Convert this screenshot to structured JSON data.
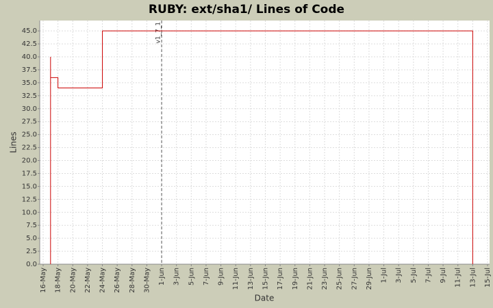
{
  "chart_data": {
    "type": "step-line",
    "title": "RUBY: ext/sha1/ Lines of Code",
    "x_label": "Date",
    "y_label": "Lines",
    "x": [
      "17-May",
      "17-May",
      "17-May",
      "18-May",
      "24-May",
      "13-Jul"
    ],
    "series": [
      {
        "name": "Lines",
        "color": "#cc0000",
        "values": [
          0,
          40,
          36,
          34,
          45,
          0
        ]
      }
    ],
    "xlim": [
      "16-May",
      "15-Jul"
    ],
    "xticks": [
      "16-May",
      "18-May",
      "20-May",
      "22-May",
      "24-May",
      "26-May",
      "28-May",
      "30-May",
      "1-Jun",
      "3-Jun",
      "5-Jun",
      "7-Jun",
      "9-Jun",
      "11-Jun",
      "13-Jun",
      "15-Jun",
      "17-Jun",
      "19-Jun",
      "21-Jun",
      "23-Jun",
      "25-Jun",
      "27-Jun",
      "29-Jun",
      "1-Jul",
      "3-Jul",
      "5-Jul",
      "7-Jul",
      "9-Jul",
      "11-Jul",
      "13-Jul",
      "15-Jul"
    ],
    "ylim": [
      0,
      47
    ],
    "yticks": [
      {
        "value": 0,
        "label": "0.0"
      },
      {
        "value": 2.5,
        "label": "2.5"
      },
      {
        "value": 5,
        "label": "5.0"
      },
      {
        "value": 7.5,
        "label": "7.5"
      },
      {
        "value": 10,
        "label": "10.0"
      },
      {
        "value": 12.5,
        "label": "12.5"
      },
      {
        "value": 15,
        "label": "15.0"
      },
      {
        "value": 17.5,
        "label": "17.5"
      },
      {
        "value": 20,
        "label": "20.0"
      },
      {
        "value": 22.5,
        "label": "22.5"
      },
      {
        "value": 25,
        "label": "25.0"
      },
      {
        "value": 27.5,
        "label": "27.5"
      },
      {
        "value": 30,
        "label": "30.0"
      },
      {
        "value": 32.5,
        "label": "32.5"
      },
      {
        "value": 35,
        "label": "35.0"
      },
      {
        "value": 37.5,
        "label": "37.5"
      },
      {
        "value": 40,
        "label": "40.0"
      },
      {
        "value": 42.5,
        "label": "42.5"
      },
      {
        "value": 45,
        "label": "45.0"
      }
    ],
    "markers": [
      {
        "x": "1-Jun",
        "label": "v1_7_1"
      }
    ],
    "grid": true
  }
}
